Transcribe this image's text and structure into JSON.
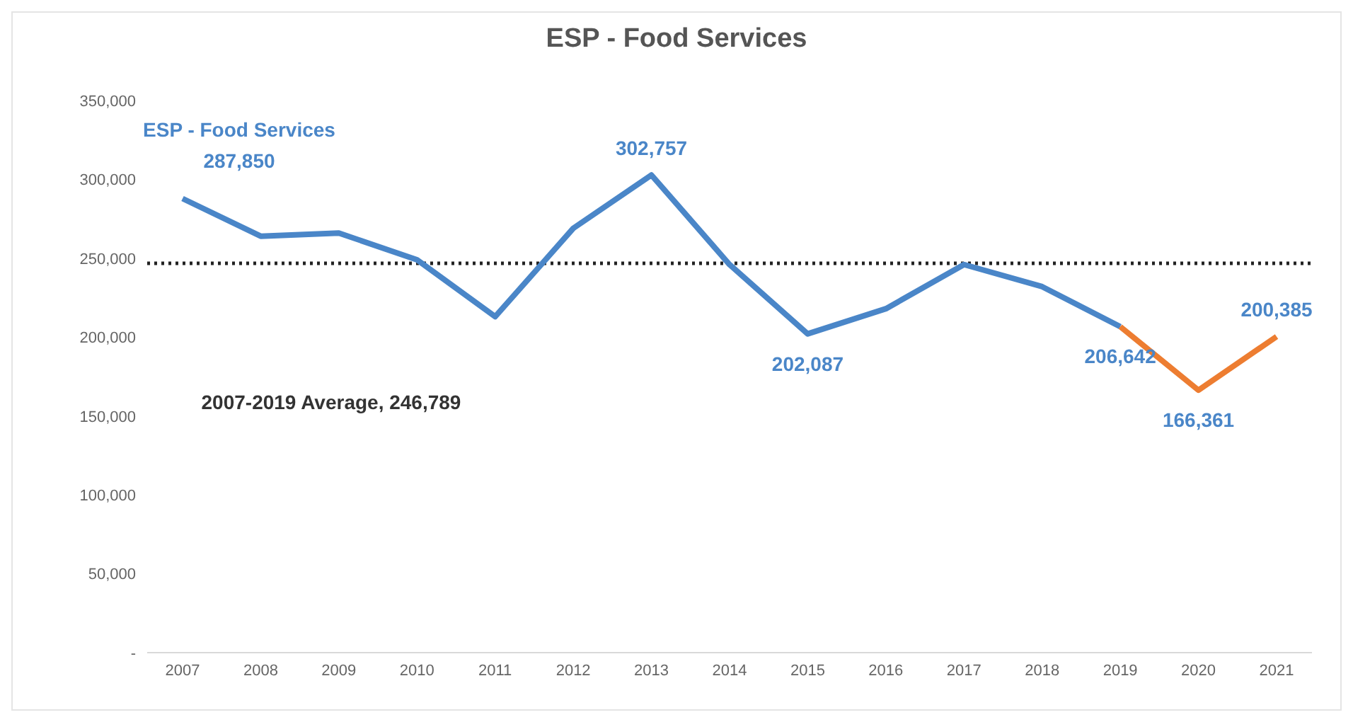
{
  "chart_data": {
    "type": "line",
    "title": "ESP - Food Services",
    "categories": [
      "2007",
      "2008",
      "2009",
      "2010",
      "2011",
      "2012",
      "2013",
      "2014",
      "2015",
      "2016",
      "2017",
      "2018",
      "2019",
      "2020",
      "2021"
    ],
    "series": [
      {
        "name": "ESP - Food Services",
        "color": "#4a86c8",
        "values": [
          287850,
          264000,
          266000,
          249000,
          213000,
          269000,
          302757,
          246000,
          202087,
          218000,
          246000,
          232000,
          206642,
          null,
          null
        ],
        "value_labels": [
          "287,850",
          null,
          null,
          null,
          null,
          null,
          "302,757",
          null,
          "202,087",
          null,
          null,
          null,
          "206,642",
          null,
          null
        ]
      },
      {
        "color": "#ed7d31",
        "values": [
          null,
          null,
          null,
          null,
          null,
          null,
          null,
          null,
          null,
          null,
          null,
          null,
          206642,
          166361,
          200385
        ],
        "value_labels": [
          null,
          null,
          null,
          null,
          null,
          null,
          null,
          null,
          null,
          null,
          null,
          null,
          null,
          "166,361",
          "200,385"
        ]
      }
    ],
    "ylim": [
      0,
      350000
    ],
    "yticks": [
      {
        "value": 0,
        "label": "-"
      },
      {
        "value": 50000,
        "label": "50,000"
      },
      {
        "value": 100000,
        "label": "100,000"
      },
      {
        "value": 150000,
        "label": "150,000"
      },
      {
        "value": 200000,
        "label": "200,000"
      },
      {
        "value": 250000,
        "label": "250,000"
      },
      {
        "value": 300000,
        "label": "300,000"
      },
      {
        "value": 350000,
        "label": "350,000"
      }
    ],
    "ref_lines": [
      {
        "axis": "y",
        "value": 246789,
        "label": "2007-2019 Average, 246,789",
        "color": "#222222",
        "line_style": "dotted"
      }
    ],
    "line_style": "solid"
  }
}
